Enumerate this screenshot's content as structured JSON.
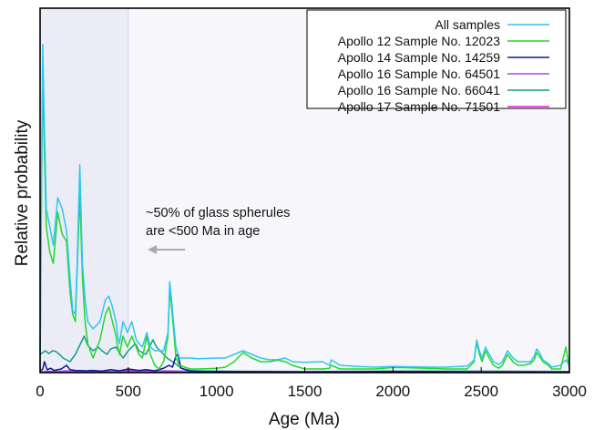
{
  "chart_data": {
    "type": "line",
    "xlabel": "Age (Ma)",
    "ylabel": "Relative probability",
    "xlim": [
      0,
      3000
    ],
    "ylim": [
      0,
      1.0
    ],
    "xticks": [
      0,
      500,
      1000,
      1500,
      2000,
      2500,
      3000
    ],
    "grid": false,
    "legend_position": "top-right",
    "background_color": "#f7f7fb",
    "highlight_region": {
      "x_start": 0,
      "x_end": 500,
      "color": "#ececf6",
      "line_color": "#d6d6f0"
    },
    "annotation": {
      "lines": [
        "~50% of glass spherules",
        "are <500 Ma in age"
      ],
      "arrow": "left"
    },
    "series": [
      {
        "name": "All samples",
        "color": "#2fc6ef",
        "points": [
          [
            0,
            0.05
          ],
          [
            10,
            0.6
          ],
          [
            15,
            0.9
          ],
          [
            22,
            0.72
          ],
          [
            35,
            0.45
          ],
          [
            55,
            0.4
          ],
          [
            75,
            0.35
          ],
          [
            100,
            0.48
          ],
          [
            125,
            0.45
          ],
          [
            150,
            0.39
          ],
          [
            170,
            0.26
          ],
          [
            185,
            0.17
          ],
          [
            200,
            0.16
          ],
          [
            210,
            0.3
          ],
          [
            225,
            0.57
          ],
          [
            240,
            0.3
          ],
          [
            255,
            0.2
          ],
          [
            270,
            0.14
          ],
          [
            300,
            0.12
          ],
          [
            340,
            0.14
          ],
          [
            370,
            0.2
          ],
          [
            390,
            0.21
          ],
          [
            410,
            0.18
          ],
          [
            430,
            0.14
          ],
          [
            440,
            0.1
          ],
          [
            450,
            0.08
          ],
          [
            470,
            0.14
          ],
          [
            495,
            0.11
          ],
          [
            520,
            0.14
          ],
          [
            545,
            0.09
          ],
          [
            560,
            0.08
          ],
          [
            580,
            0.07
          ],
          [
            605,
            0.11
          ],
          [
            625,
            0.07
          ],
          [
            650,
            0.06
          ],
          [
            675,
            0.06
          ],
          [
            700,
            0.06
          ],
          [
            725,
            0.11
          ],
          [
            735,
            0.25
          ],
          [
            745,
            0.2
          ],
          [
            760,
            0.12
          ],
          [
            770,
            0.07
          ],
          [
            790,
            0.04
          ],
          [
            850,
            0.04
          ],
          [
            900,
            0.038
          ],
          [
            1000,
            0.04
          ],
          [
            1050,
            0.04
          ],
          [
            1100,
            0.05
          ],
          [
            1150,
            0.06
          ],
          [
            1200,
            0.05
          ],
          [
            1250,
            0.04
          ],
          [
            1300,
            0.035
          ],
          [
            1350,
            0.036
          ],
          [
            1390,
            0.04
          ],
          [
            1430,
            0.03
          ],
          [
            1500,
            0.028
          ],
          [
            1600,
            0.03
          ],
          [
            1640,
            0.02
          ],
          [
            1650,
            0.035
          ],
          [
            1700,
            0.02
          ],
          [
            1800,
            0.017
          ],
          [
            1900,
            0.015
          ],
          [
            2000,
            0.017
          ],
          [
            2100,
            0.016
          ],
          [
            2200,
            0.015
          ],
          [
            2300,
            0.015
          ],
          [
            2420,
            0.018
          ],
          [
            2460,
            0.035
          ],
          [
            2475,
            0.09
          ],
          [
            2490,
            0.06
          ],
          [
            2505,
            0.04
          ],
          [
            2525,
            0.07
          ],
          [
            2540,
            0.055
          ],
          [
            2570,
            0.03
          ],
          [
            2600,
            0.022
          ],
          [
            2620,
            0.03
          ],
          [
            2650,
            0.06
          ],
          [
            2680,
            0.04
          ],
          [
            2710,
            0.03
          ],
          [
            2740,
            0.03
          ],
          [
            2780,
            0.03
          ],
          [
            2800,
            0.045
          ],
          [
            2815,
            0.065
          ],
          [
            2830,
            0.055
          ],
          [
            2850,
            0.035
          ],
          [
            2880,
            0.025
          ],
          [
            2900,
            0.015
          ],
          [
            2950,
            0.02
          ],
          [
            2980,
            0.035
          ],
          [
            3000,
            0.02
          ]
        ]
      },
      {
        "name": "Apollo 12 Sample No. 12023",
        "color": "#23d82b",
        "points": [
          [
            0,
            0.01
          ],
          [
            10,
            0.6
          ],
          [
            15,
            0.8
          ],
          [
            22,
            0.65
          ],
          [
            35,
            0.4
          ],
          [
            55,
            0.33
          ],
          [
            75,
            0.3
          ],
          [
            100,
            0.44
          ],
          [
            125,
            0.38
          ],
          [
            150,
            0.36
          ],
          [
            170,
            0.22
          ],
          [
            185,
            0.16
          ],
          [
            200,
            0.14
          ],
          [
            210,
            0.28
          ],
          [
            225,
            0.49
          ],
          [
            240,
            0.26
          ],
          [
            255,
            0.14
          ],
          [
            270,
            0.08
          ],
          [
            300,
            0.04
          ],
          [
            340,
            0.09
          ],
          [
            370,
            0.16
          ],
          [
            390,
            0.18
          ],
          [
            410,
            0.14
          ],
          [
            430,
            0.1
          ],
          [
            440,
            0.07
          ],
          [
            450,
            0.05
          ],
          [
            470,
            0.1
          ],
          [
            495,
            0.07
          ],
          [
            520,
            0.1
          ],
          [
            545,
            0.07
          ],
          [
            560,
            0.05
          ],
          [
            580,
            0.04
          ],
          [
            605,
            0.1
          ],
          [
            625,
            0.05
          ],
          [
            650,
            0.02
          ],
          [
            675,
            0.01
          ],
          [
            700,
            0.03
          ],
          [
            725,
            0.1
          ],
          [
            735,
            0.23
          ],
          [
            745,
            0.18
          ],
          [
            760,
            0.1
          ],
          [
            770,
            0.04
          ],
          [
            790,
            0.02
          ],
          [
            850,
            0.01
          ],
          [
            900,
            0.01
          ],
          [
            1000,
            0.012
          ],
          [
            1050,
            0.015
          ],
          [
            1100,
            0.03
          ],
          [
            1150,
            0.055
          ],
          [
            1200,
            0.04
          ],
          [
            1250,
            0.03
          ],
          [
            1300,
            0.03
          ],
          [
            1350,
            0.034
          ],
          [
            1390,
            0.03
          ],
          [
            1430,
            0.02
          ],
          [
            1500,
            0.01
          ],
          [
            1600,
            0.01
          ],
          [
            1640,
            0.012
          ],
          [
            1650,
            0.02
          ],
          [
            1700,
            0.01
          ],
          [
            1800,
            0.01
          ],
          [
            1900,
            0.01
          ],
          [
            2000,
            0.014
          ],
          [
            2100,
            0.013
          ],
          [
            2200,
            0.012
          ],
          [
            2300,
            0.01
          ],
          [
            2420,
            0.01
          ],
          [
            2460,
            0.03
          ],
          [
            2475,
            0.085
          ],
          [
            2490,
            0.05
          ],
          [
            2505,
            0.03
          ],
          [
            2525,
            0.06
          ],
          [
            2540,
            0.045
          ],
          [
            2570,
            0.02
          ],
          [
            2600,
            0.012
          ],
          [
            2620,
            0.02
          ],
          [
            2650,
            0.05
          ],
          [
            2680,
            0.03
          ],
          [
            2710,
            0.02
          ],
          [
            2740,
            0.02
          ],
          [
            2780,
            0.025
          ],
          [
            2800,
            0.035
          ],
          [
            2815,
            0.055
          ],
          [
            2830,
            0.045
          ],
          [
            2850,
            0.03
          ],
          [
            2880,
            0.02
          ],
          [
            2900,
            0.01
          ],
          [
            2950,
            0.01
          ],
          [
            2980,
            0.07
          ],
          [
            3000,
            0.01
          ]
        ]
      },
      {
        "name": "Apollo 14 Sample No. 14259",
        "color": "#0d1b8c",
        "points": [
          [
            0,
            0.004
          ],
          [
            15,
            0.01
          ],
          [
            25,
            0.03
          ],
          [
            40,
            0.008
          ],
          [
            60,
            0.012
          ],
          [
            80,
            0.006
          ],
          [
            120,
            0.01
          ],
          [
            150,
            0.02
          ],
          [
            170,
            0.008
          ],
          [
            200,
            0.006
          ],
          [
            260,
            0.005
          ],
          [
            300,
            0.006
          ],
          [
            350,
            0.004
          ],
          [
            400,
            0.008
          ],
          [
            450,
            0.005
          ],
          [
            500,
            0.01
          ],
          [
            560,
            0.006
          ],
          [
            600,
            0.008
          ],
          [
            650,
            0.005
          ],
          [
            700,
            0.012
          ],
          [
            730,
            0.02
          ],
          [
            750,
            0.015
          ],
          [
            770,
            0.045
          ],
          [
            780,
            0.05
          ],
          [
            790,
            0.03
          ],
          [
            800,
            0.012
          ],
          [
            850,
            0.004
          ],
          [
            900,
            0.003
          ],
          [
            1000,
            0.003
          ],
          [
            1500,
            0.002
          ],
          [
            2000,
            0.003
          ],
          [
            2500,
            0.002
          ],
          [
            3000,
            0.002
          ]
        ]
      },
      {
        "name": "Apollo 16 Sample No. 64501",
        "color": "#9b4fe0",
        "points": [
          [
            0,
            0.002
          ],
          [
            50,
            0.004
          ],
          [
            100,
            0.003
          ],
          [
            150,
            0.005
          ],
          [
            200,
            0.003
          ],
          [
            300,
            0.004
          ],
          [
            400,
            0.003
          ],
          [
            500,
            0.006
          ],
          [
            600,
            0.004
          ],
          [
            700,
            0.005
          ],
          [
            800,
            0.004
          ],
          [
            900,
            0.003
          ],
          [
            1000,
            0.003
          ],
          [
            1500,
            0.003
          ],
          [
            2000,
            0.003
          ],
          [
            2500,
            0.003
          ],
          [
            3000,
            0.003
          ]
        ]
      },
      {
        "name": "Apollo 16 Sample No. 66041",
        "color": "#169c8c",
        "points": [
          [
            0,
            0.05
          ],
          [
            15,
            0.055
          ],
          [
            30,
            0.06
          ],
          [
            50,
            0.052
          ],
          [
            70,
            0.06
          ],
          [
            90,
            0.058
          ],
          [
            110,
            0.05
          ],
          [
            130,
            0.04
          ],
          [
            150,
            0.035
          ],
          [
            170,
            0.03
          ],
          [
            200,
            0.05
          ],
          [
            230,
            0.08
          ],
          [
            250,
            0.1
          ],
          [
            270,
            0.075
          ],
          [
            300,
            0.06
          ],
          [
            330,
            0.07
          ],
          [
            350,
            0.06
          ],
          [
            380,
            0.05
          ],
          [
            400,
            0.065
          ],
          [
            430,
            0.07
          ],
          [
            450,
            0.055
          ],
          [
            470,
            0.04
          ],
          [
            500,
            0.06
          ],
          [
            540,
            0.08
          ],
          [
            560,
            0.06
          ],
          [
            600,
            0.05
          ],
          [
            640,
            0.09
          ],
          [
            660,
            0.07
          ],
          [
            700,
            0.05
          ],
          [
            720,
            0.04
          ],
          [
            750,
            0.03
          ],
          [
            780,
            0.02
          ],
          [
            800,
            0.012
          ],
          [
            850,
            0.006
          ],
          [
            900,
            0.005
          ],
          [
            1000,
            0.004
          ],
          [
            1500,
            0.003
          ],
          [
            2000,
            0.004
          ],
          [
            2500,
            0.004
          ],
          [
            3000,
            0.003
          ]
        ]
      },
      {
        "name": "Apollo 17 Sample No. 71501",
        "color": "#e81ed9",
        "points": [
          [
            0,
            0.002
          ],
          [
            100,
            0.003
          ],
          [
            200,
            0.002
          ],
          [
            300,
            0.003
          ],
          [
            400,
            0.002
          ],
          [
            500,
            0.003
          ],
          [
            600,
            0.002
          ],
          [
            700,
            0.003
          ],
          [
            800,
            0.002
          ],
          [
            1000,
            0.002
          ],
          [
            1500,
            0.002
          ],
          [
            2000,
            0.002
          ],
          [
            2500,
            0.002
          ],
          [
            2900,
            0.002
          ],
          [
            2960,
            0.003
          ],
          [
            3000,
            0.002
          ]
        ]
      }
    ]
  }
}
